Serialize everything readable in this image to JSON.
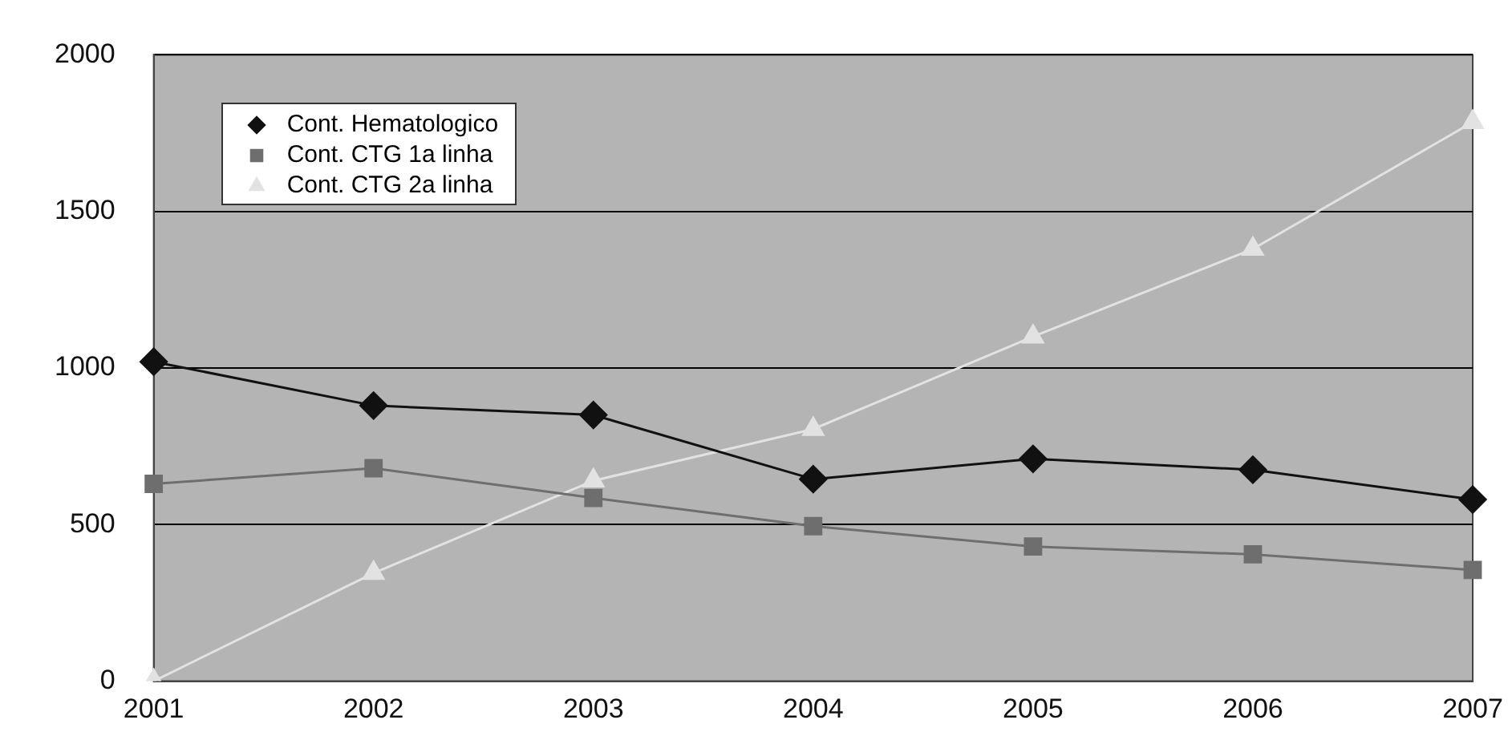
{
  "chart_data": {
    "type": "line",
    "categories": [
      "2001",
      "2002",
      "2003",
      "2004",
      "2005",
      "2006",
      "2007"
    ],
    "series": [
      {
        "name": "Cont. Hematologico",
        "color": "#111111",
        "marker": "diamond",
        "values": [
          1020,
          880,
          850,
          645,
          710,
          675,
          580
        ]
      },
      {
        "name": "Cont. CTG 1a linha",
        "color": "#6e6e6e",
        "marker": "square",
        "values": [
          630,
          680,
          585,
          495,
          430,
          405,
          355
        ]
      },
      {
        "name": "Cont. CTG 2a linha",
        "color": "#e2e2e2",
        "marker": "triangle",
        "values": [
          0,
          345,
          640,
          805,
          1100,
          1380,
          1785
        ]
      }
    ],
    "ylim": [
      0,
      2000
    ],
    "yticks": [
      0,
      500,
      1000,
      1500,
      2000
    ],
    "grid": "y",
    "legend": "top left"
  }
}
